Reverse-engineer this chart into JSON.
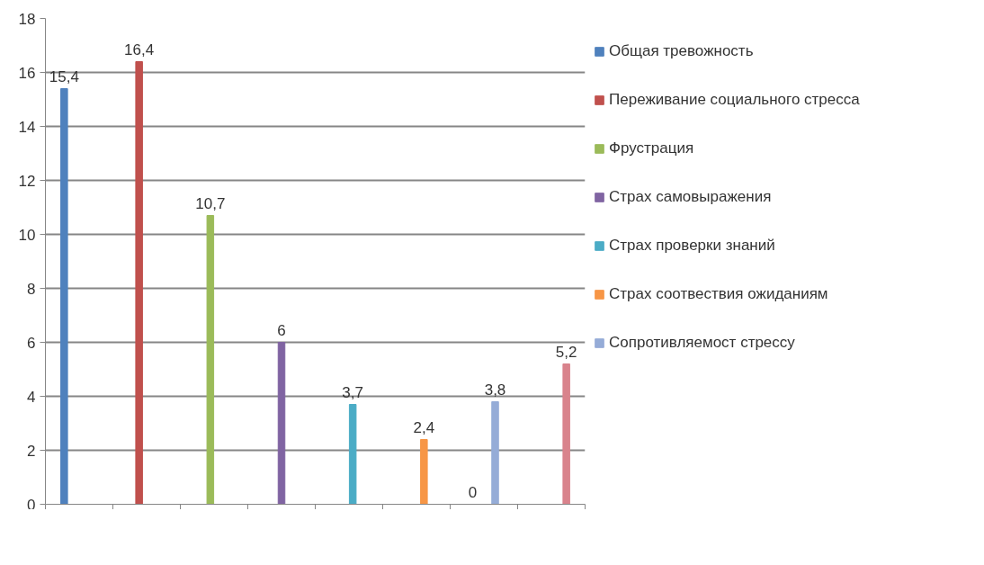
{
  "chart_data": {
    "type": "bar",
    "categories": [
      null,
      null,
      null,
      null,
      null,
      null,
      null,
      null
    ],
    "series": [
      {
        "name": "Общая тревожность",
        "color": "#4f81bd",
        "values": [
          15.4,
          null,
          null,
          null,
          null,
          null,
          null,
          null
        ],
        "value_labels": [
          "15,4",
          null,
          null,
          null,
          null,
          null,
          null,
          null
        ]
      },
      {
        "color": "#595959",
        "values": [
          null,
          null,
          null,
          null,
          null,
          null,
          0,
          null
        ],
        "value_labels": [
          null,
          null,
          null,
          null,
          null,
          null,
          "0",
          null
        ]
      },
      {
        "name": "Переживание социального стресса",
        "color": "#c0504d",
        "values": [
          null,
          16.4,
          null,
          null,
          null,
          null,
          null,
          null
        ],
        "value_labels": [
          null,
          "16,4",
          null,
          null,
          null,
          null,
          null,
          null
        ]
      },
      {
        "name": "Фрустрация",
        "color": "#9bbb59",
        "values": [
          null,
          null,
          10.7,
          null,
          null,
          null,
          null,
          null
        ],
        "value_labels": [
          null,
          null,
          "10,7",
          null,
          null,
          null,
          null,
          null
        ]
      },
      {
        "name": "Страх самовыражения",
        "color": "#8064a2",
        "values": [
          null,
          null,
          null,
          6,
          null,
          null,
          null,
          null
        ],
        "value_labels": [
          null,
          null,
          null,
          "6",
          null,
          null,
          null,
          null
        ]
      },
      {
        "name": "Страх проверки знаний",
        "color": "#4bacc6",
        "values": [
          null,
          null,
          null,
          null,
          3.7,
          null,
          null,
          null
        ],
        "value_labels": [
          null,
          null,
          null,
          null,
          "3,7",
          null,
          null,
          null
        ]
      },
      {
        "name": "Страх соотвествия ожиданиям",
        "color": "#f79646",
        "values": [
          null,
          null,
          null,
          null,
          null,
          2.4,
          null,
          null
        ],
        "value_labels": [
          null,
          null,
          null,
          null,
          null,
          "2,4",
          null,
          null
        ]
      },
      {
        "name": "Сопротивляемост стрессу",
        "color": "#95acd7",
        "values": [
          null,
          null,
          null,
          null,
          null,
          null,
          3.8,
          null
        ],
        "value_labels": [
          null,
          null,
          null,
          null,
          null,
          null,
          "3,8",
          null
        ]
      },
      {
        "color": "#d9838c",
        "values": [
          null,
          null,
          null,
          null,
          null,
          null,
          null,
          5.2
        ],
        "value_labels": [
          null,
          null,
          null,
          null,
          null,
          null,
          null,
          "5,2"
        ]
      }
    ],
    "ylim": [
      0,
      18
    ],
    "yticks": [
      0,
      2,
      4,
      6,
      8,
      10,
      12,
      14,
      16,
      18
    ],
    "grid": "y",
    "legend": "right",
    "tick_labels": "y"
  }
}
